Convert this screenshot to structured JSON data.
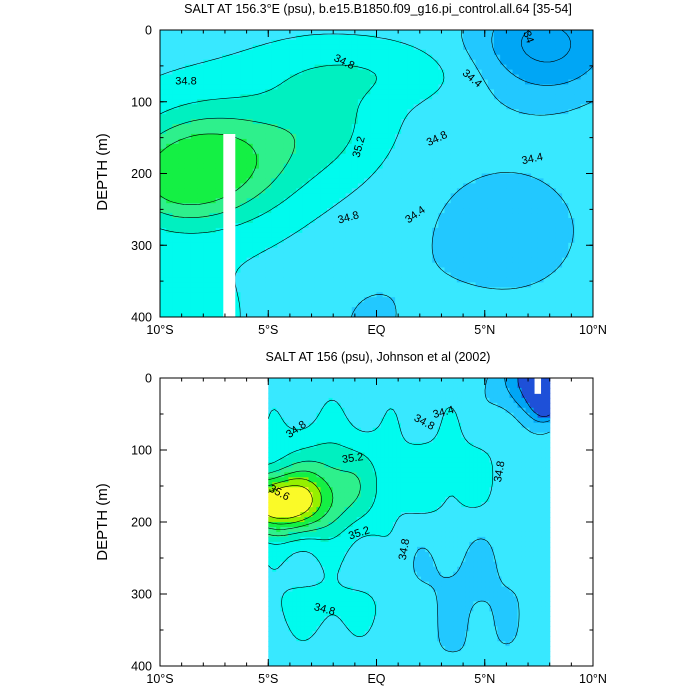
{
  "chart_data": [
    {
      "type": "contour",
      "title": "SALT AT 156.3°E (psu), b.e15.B1850.f09_g16.pi_control.all.64 [35-54]",
      "title_super": "o",
      "xlabel": "",
      "ylabel": "DEPTH (m)",
      "xlim": [
        -10,
        10
      ],
      "ylim": [
        0,
        400
      ],
      "y_inverted": true,
      "xticks": [
        "10°S",
        "5°S",
        "EQ",
        "5°N",
        "10°N"
      ],
      "yticks": [
        "0",
        "100",
        "200",
        "300",
        "400"
      ],
      "contour_labels": [
        "34.8",
        "34.8",
        "34",
        "34.4",
        "35.2",
        "34.8",
        "34.4",
        "34.8",
        "34.4"
      ],
      "levels": [
        34.0,
        34.2,
        34.4,
        34.6,
        34.8,
        35.0,
        35.2
      ],
      "fill_colors": [
        "#00A6F5",
        "#22C8FF",
        "#38E8FF",
        "#00FBEE",
        "#00F0C0",
        "#2EF08C",
        "#14F044"
      ],
      "max_salinity_psu": 35.4,
      "min_salinity_psu": 33.9,
      "missing_data_column_lon": -6.8
    },
    {
      "type": "contour",
      "title": "SALT AT 156 (psu), Johnson et al (2002)",
      "xlabel": "",
      "ylabel": "DEPTH (m)",
      "xlim": [
        -10,
        10
      ],
      "ylim": [
        0,
        400
      ],
      "y_inverted": true,
      "data_extent_lon": [
        -5,
        8
      ],
      "xticks": [
        "10°S",
        "5°S",
        "EQ",
        "5°N",
        "10°N"
      ],
      "yticks": [
        "0",
        "100",
        "200",
        "300",
        "400"
      ],
      "contour_labels": [
        "34.8",
        "34.8",
        "34.4",
        "35.2",
        "35.6",
        "34.8",
        "35.2",
        "34.8",
        "34.8"
      ],
      "levels": [
        34.0,
        34.2,
        34.4,
        34.6,
        34.8,
        35.0,
        35.2,
        35.4,
        35.6
      ],
      "fill_colors": [
        "#1E50D8",
        "#00A6F5",
        "#22C8FF",
        "#38E8FF",
        "#00FBEE",
        "#00F0C0",
        "#2EF08C",
        "#14F044",
        "#96F000",
        "#FAFA28"
      ],
      "max_salinity_psu": 35.75,
      "min_salinity_psu": 33.9
    }
  ]
}
